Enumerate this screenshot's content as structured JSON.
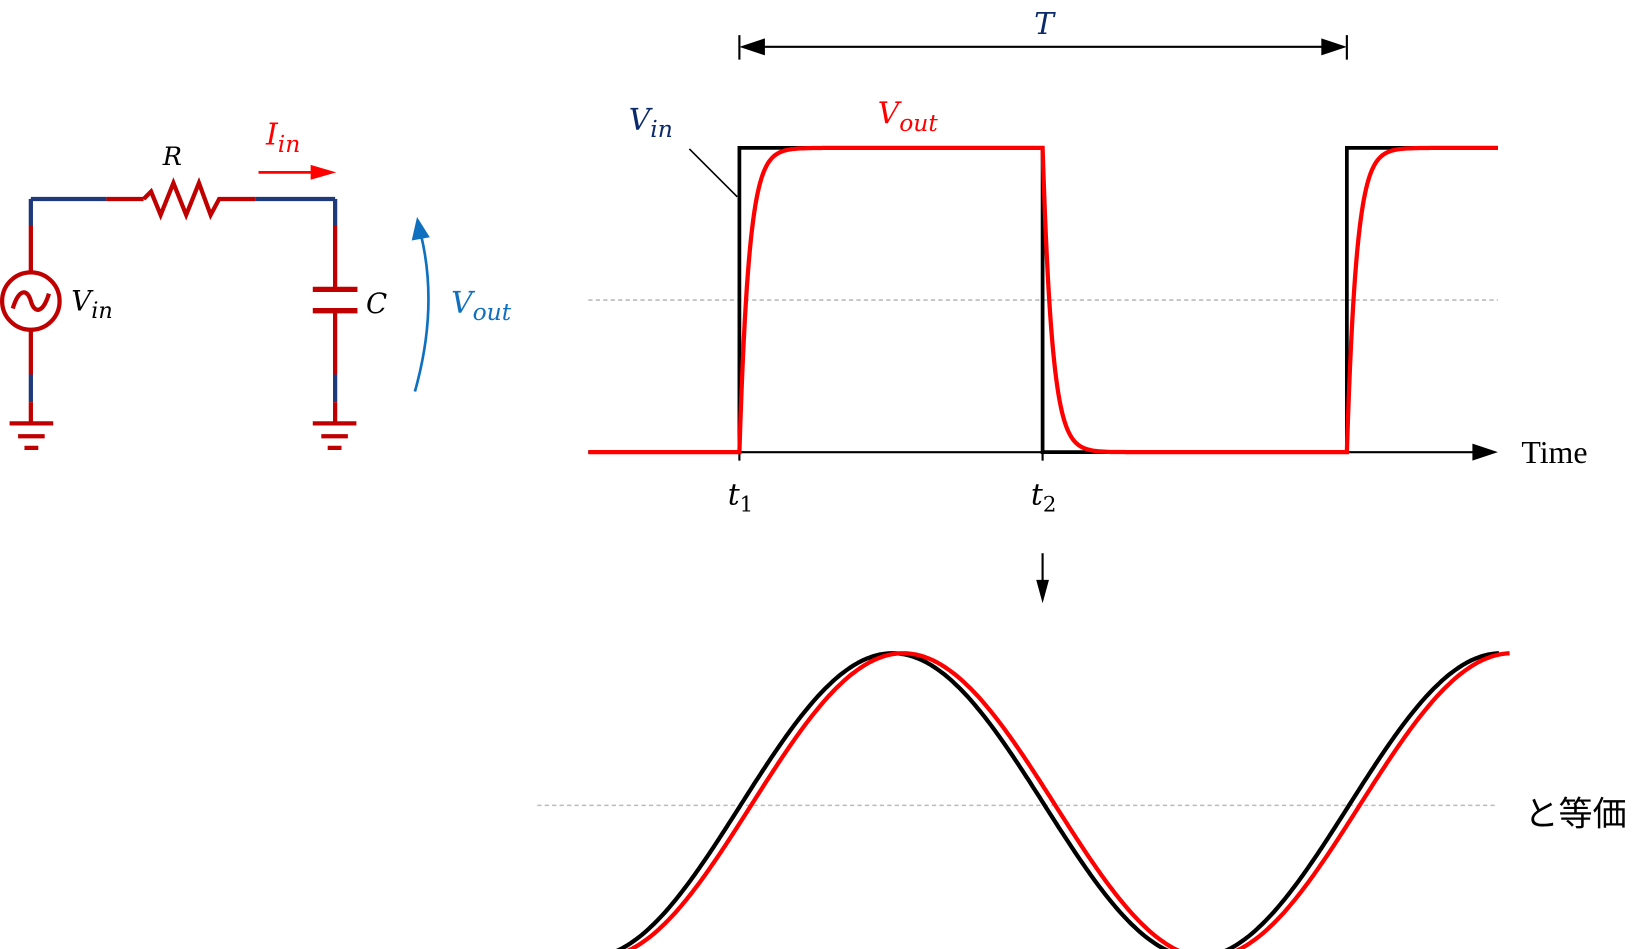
{
  "circuit": {
    "resistor_label": "R",
    "current_label": {
      "main": "I",
      "sub": "in"
    },
    "capacitor_label": "C",
    "source_label": {
      "main": "V",
      "sub": "in"
    },
    "output_label": {
      "main": "V",
      "sub": "out"
    }
  },
  "square_plot": {
    "period_label": "T",
    "vin_label": {
      "main": "V",
      "sub": "in"
    },
    "vout_label": {
      "main": "V",
      "sub": "out"
    },
    "x_axis_label": "Time",
    "t1_label": {
      "main": "t",
      "sub": "1"
    },
    "t2_label": {
      "main": "t",
      "sub": "2"
    }
  },
  "sine_plot": {
    "equivalent_label": "と等価"
  },
  "colors": {
    "wire_red": "#c00000",
    "wire_blue": "#1f3a7a",
    "vout_red": "#ff0000",
    "vout_blue": "#1070c0",
    "navy": "#0b2a6b"
  }
}
